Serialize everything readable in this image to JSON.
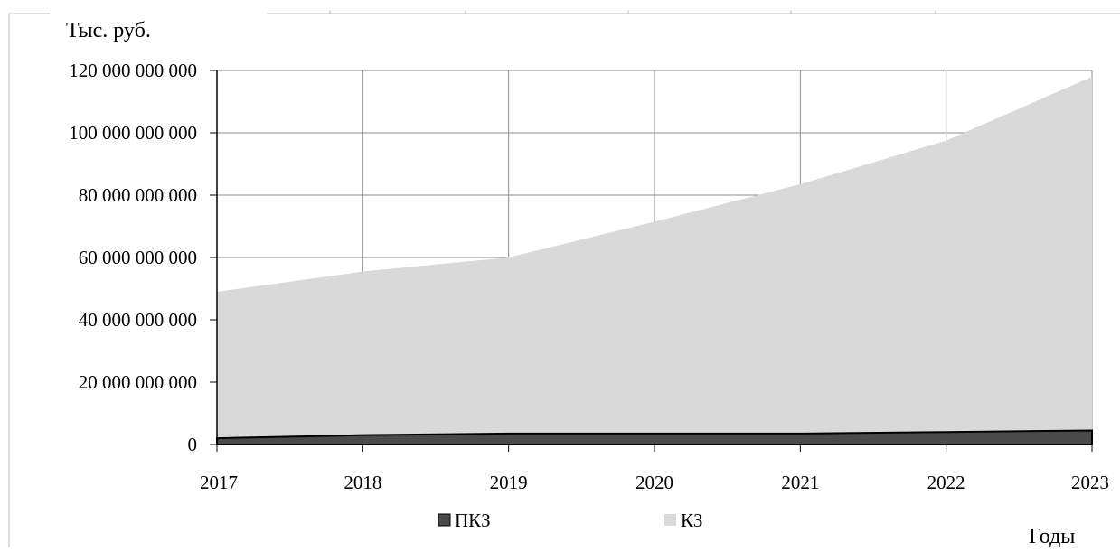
{
  "chart_data": {
    "type": "area",
    "stacked": true,
    "y_unit_label": "Тыс. руб.",
    "x_unit_label": "Годы",
    "x": [
      "2017",
      "2018",
      "2019",
      "2020",
      "2021",
      "2022",
      "2023"
    ],
    "ylim": [
      0,
      120000000000
    ],
    "y_ticks": [
      0,
      20000000000,
      40000000000,
      60000000000,
      80000000000,
      100000000000,
      120000000000
    ],
    "y_tick_labels": [
      "0",
      "20 000 000 000",
      "40 000 000 000",
      "60 000 000 000",
      "80 000 000 000",
      "100 000 000 000",
      "120 000 000 000"
    ],
    "grid": true,
    "legend_position": "bottom",
    "series": [
      {
        "name": "ПКЗ",
        "color": "#4a4a4a",
        "values": [
          2000000000,
          3000000000,
          3500000000,
          3500000000,
          3500000000,
          4000000000,
          4500000000
        ]
      },
      {
        "name": "КЗ",
        "color": "#d9d9d9",
        "values": [
          47000000000,
          52500000000,
          56500000000,
          68000000000,
          80000000000,
          93500000000,
          113500000000
        ]
      }
    ]
  }
}
